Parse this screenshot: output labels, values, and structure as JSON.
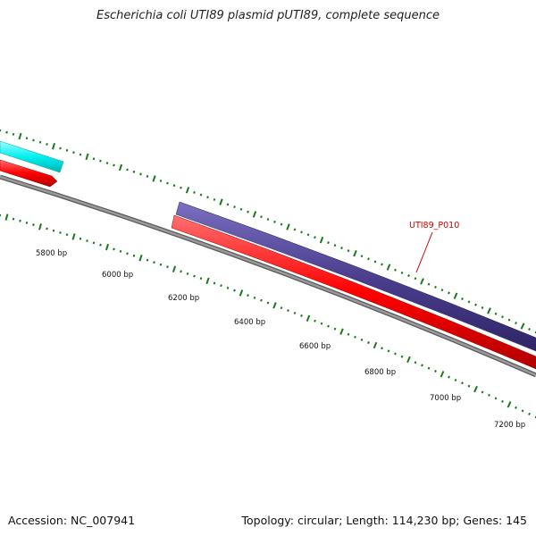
{
  "header": {
    "title": "Escherichia coli UTI89 plasmid pUTI89, complete sequence"
  },
  "footer": {
    "accession": "Accession: NC_007941",
    "summary": "Topology: circular; Length: 114,230 bp; Genes: 145"
  },
  "map": {
    "colors": {
      "backbone": "#808080",
      "backbone_edge": "#5a5a5a",
      "tick": "#1a7a1a",
      "forward_gene_primary": "#4b3f8e",
      "reverse_gene": "#ff0000",
      "other_gene": "#00ffff",
      "label": "#cc0000"
    },
    "scale_labels": [
      "5800 bp",
      "6000 bp",
      "6200 bp",
      "6400 bp",
      "6600 bp",
      "6800 bp",
      "7000 bp",
      "7200 bp"
    ],
    "callout": {
      "label": "UTI89_P010"
    }
  }
}
